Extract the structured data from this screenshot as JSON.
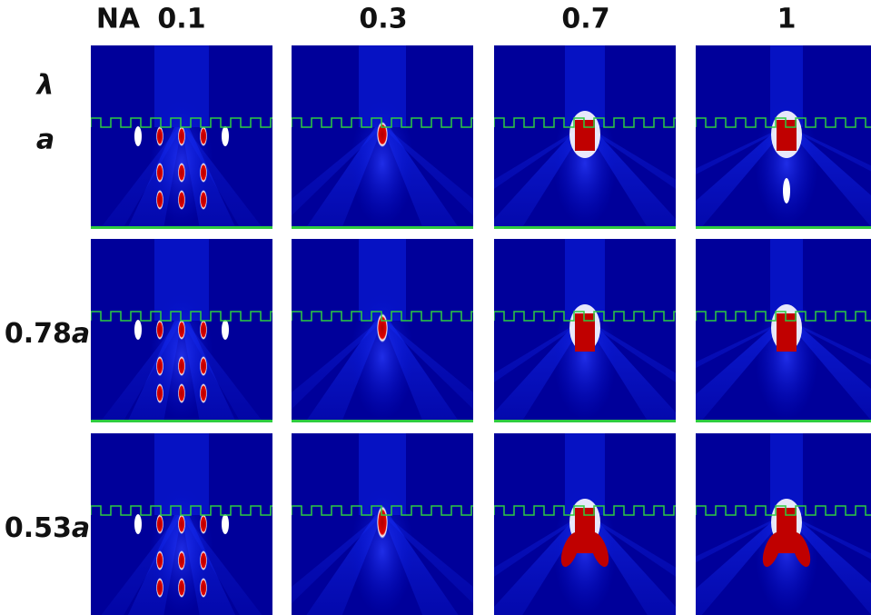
{
  "header": {
    "corner": "NA",
    "columns": [
      "0.1",
      "0.3",
      "0.7",
      "1"
    ]
  },
  "rows": [
    {
      "lambda": "λ",
      "unit": "a"
    },
    {
      "number": "0.78",
      "unit": "a"
    },
    {
      "number": "0.53",
      "unit": "a"
    }
  ]
}
